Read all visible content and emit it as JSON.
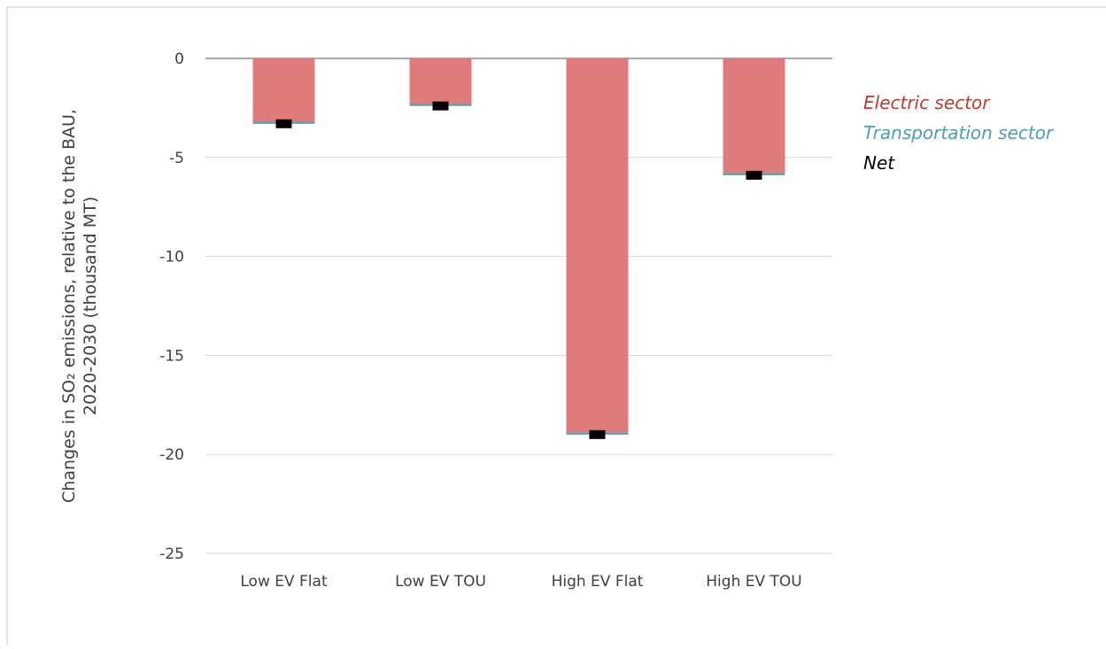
{
  "chart_data": {
    "type": "bar",
    "ylabel": [
      "Changes in SO₂ emissions, relative to the BAU,",
      "2020-2030 (thousand MT)"
    ],
    "categories": [
      "Low EV Flat",
      "Low EV TOU",
      "High EV Flat",
      "High EV TOU"
    ],
    "series": [
      {
        "name": "Electric sector",
        "color": "#e07b7b",
        "values": [
          -3.2,
          -2.3,
          -18.9,
          -5.8
        ]
      },
      {
        "name": "Transportation sector",
        "color": "#4aa3b5",
        "values": [
          -0.1,
          -0.1,
          -0.1,
          -0.1
        ]
      },
      {
        "name": "Net",
        "color": "#000000",
        "values": [
          -3.3,
          -2.4,
          -19.0,
          -5.9
        ]
      }
    ],
    "legend_colors": [
      "#c0392b",
      "#4a9fb0",
      "#000000"
    ],
    "ylim": [
      -25,
      0
    ],
    "yticks": [
      0,
      -5,
      -10,
      -15,
      -20,
      -25
    ],
    "grid": true
  }
}
